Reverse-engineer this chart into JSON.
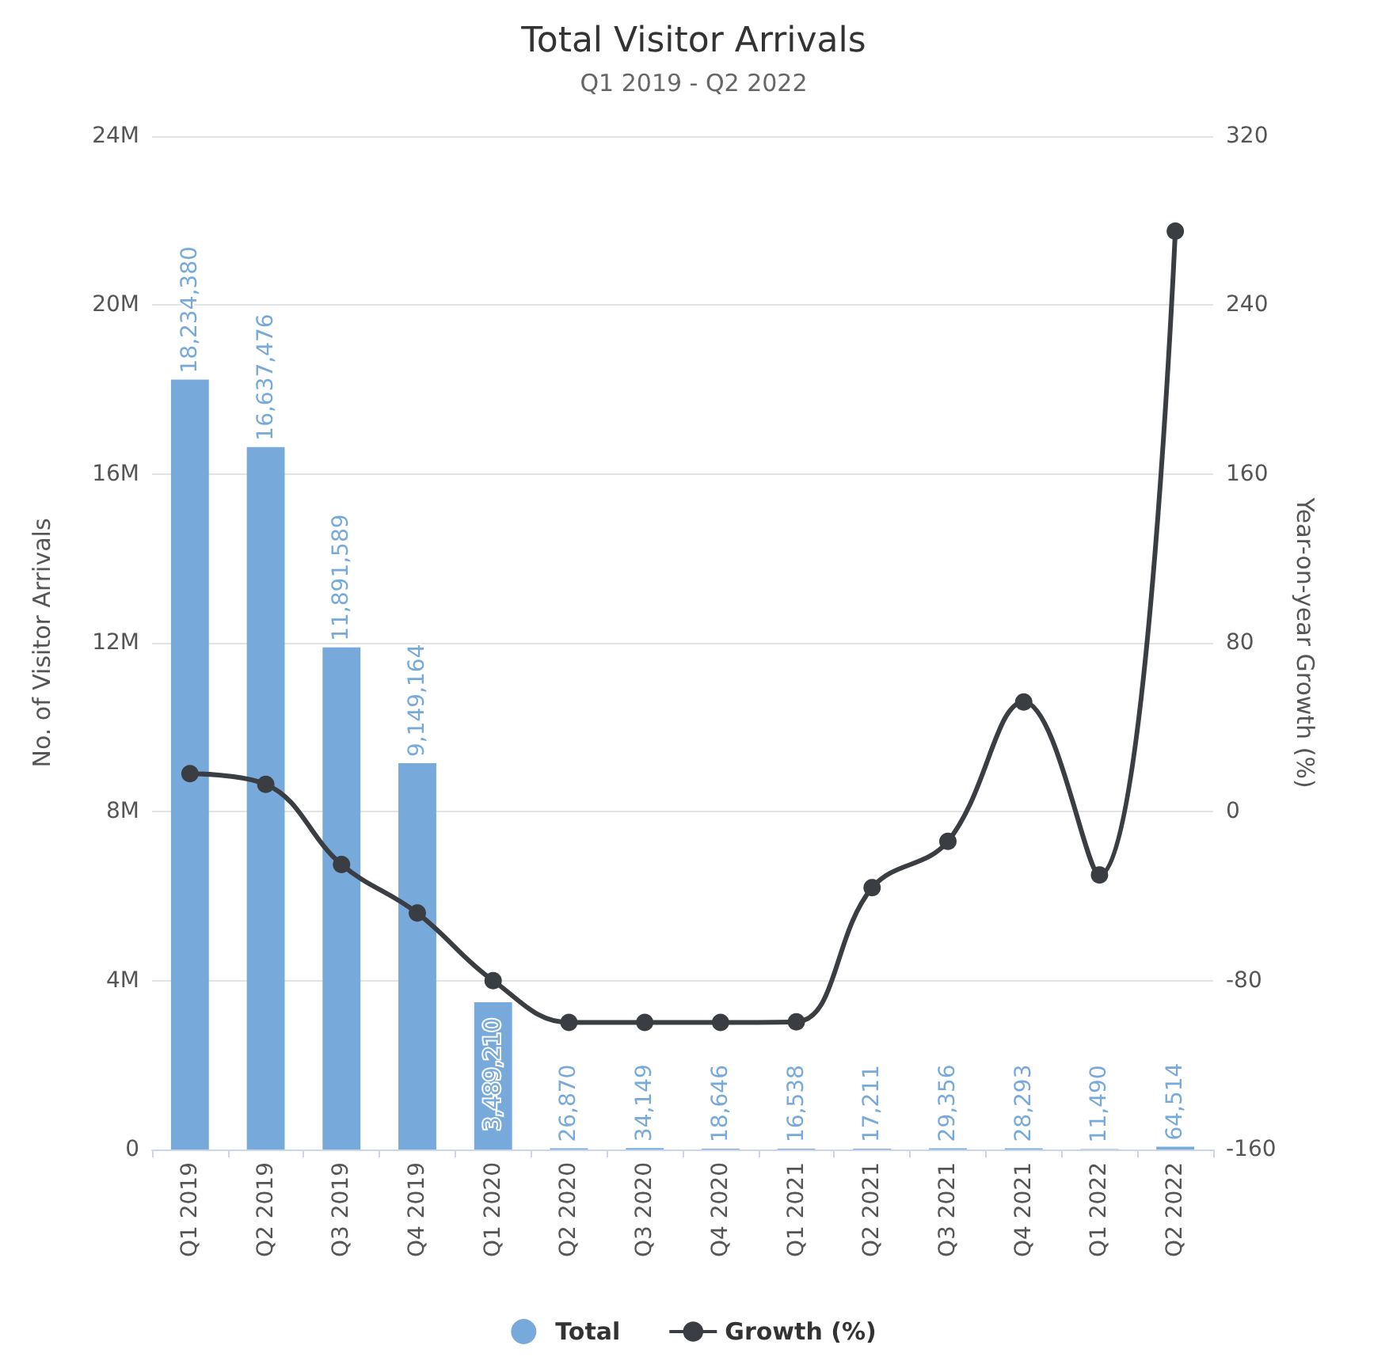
{
  "chart_data": {
    "type": "bar",
    "title": "Total Visitor Arrivals",
    "subtitle": "Q1 2019 - Q2 2022",
    "ylabel": "No. of Visitor Arrivals",
    "y2label": "Year-on-year Growth (%)",
    "categories": [
      "Q1 2019",
      "Q2 2019",
      "Q3 2019",
      "Q4 2019",
      "Q1 2020",
      "Q2 2020",
      "Q3 2020",
      "Q4 2020",
      "Q1 2021",
      "Q2 2021",
      "Q3 2021",
      "Q4 2021",
      "Q1 2022",
      "Q2 2022"
    ],
    "series": [
      {
        "name": "Total",
        "color": "#77a9da",
        "values": [
          18234380,
          16637476,
          11891589,
          9149164,
          3489210,
          26870,
          34149,
          18646,
          16538,
          17211,
          29356,
          28293,
          11490,
          64514
        ],
        "value_labels": [
          "18,234,380",
          "16,637,476",
          "11,891,589",
          "9,149,164",
          "3,489,210",
          "26,870",
          "34,149",
          "18,646",
          "16,538",
          "17,211",
          "29,356",
          "28,293",
          "11,490",
          "64,514"
        ]
      },
      {
        "name": "Growth (%)",
        "type": "line",
        "axis": "y2",
        "color": "#3a3d42",
        "marker": "circle",
        "values": [
          18,
          13,
          -25,
          -48,
          -80,
          -99.8,
          -99.8,
          -99.8,
          -99.5,
          -36,
          -14,
          52,
          -30,
          275
        ]
      }
    ],
    "ylim": [
      0,
      24000000
    ],
    "yticks": [
      {
        "value": 0,
        "label": "0"
      },
      {
        "value": 4000000,
        "label": "4M"
      },
      {
        "value": 8000000,
        "label": "8M"
      },
      {
        "value": 12000000,
        "label": "12M"
      },
      {
        "value": 16000000,
        "label": "16M"
      },
      {
        "value": 20000000,
        "label": "20M"
      },
      {
        "value": 24000000,
        "label": "24M"
      }
    ],
    "y2lim": [
      -160,
      320
    ],
    "y2ticks": [
      -160,
      -80,
      0,
      80,
      160,
      240,
      320
    ],
    "grid": "y",
    "legend": "bottom"
  }
}
